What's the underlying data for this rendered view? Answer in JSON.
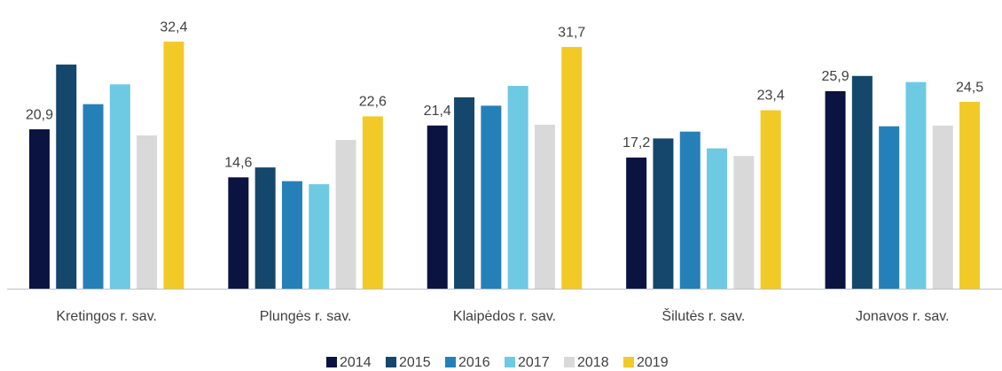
{
  "chart_data": {
    "type": "bar",
    "categories": [
      "Kretingos r. sav.",
      "Plungės r. sav.",
      "Klaipėdos r. sav.",
      "Šilutės r. sav.",
      "Jonavos r. sav."
    ],
    "series": [
      {
        "name": "2014",
        "color": "#0b1340",
        "values": [
          20.9,
          14.6,
          21.4,
          17.2,
          25.9
        ],
        "value_labels": [
          "20,9",
          "14,6",
          "21,4",
          "17,2",
          "25,9"
        ]
      },
      {
        "name": "2015",
        "color": "#14476b",
        "values": [
          29.4,
          15.9,
          25.1,
          19.7,
          27.9
        ]
      },
      {
        "name": "2016",
        "color": "#2580b8",
        "values": [
          24.2,
          14.1,
          24.0,
          20.6,
          21.3
        ]
      },
      {
        "name": "2017",
        "color": "#6ecae2",
        "values": [
          26.8,
          13.7,
          26.6,
          18.4,
          27.1
        ]
      },
      {
        "name": "2018",
        "color": "#d9d9d9",
        "values": [
          20.1,
          19.5,
          21.5,
          17.4,
          21.4
        ]
      },
      {
        "name": "2019",
        "color": "#f2ca27",
        "values": [
          32.4,
          22.6,
          31.7,
          23.4,
          24.5
        ],
        "value_labels": [
          "32,4",
          "22,6",
          "31,7",
          "23,4",
          "24,5"
        ]
      }
    ]
  }
}
